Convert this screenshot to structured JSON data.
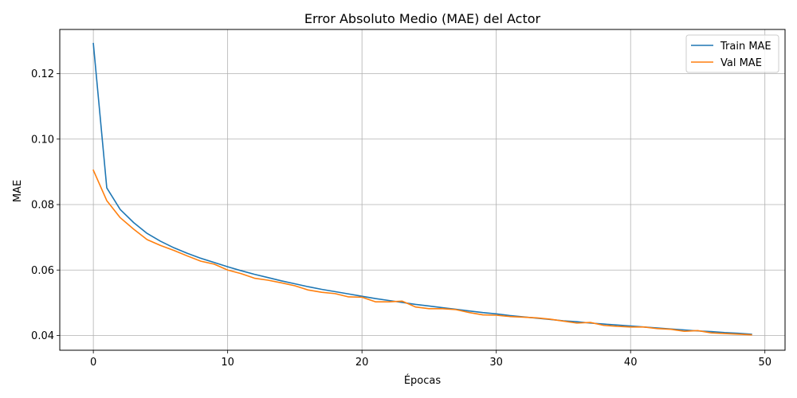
{
  "chart_data": {
    "type": "line",
    "title": "Error Absoluto Medio (MAE) del Actor",
    "xlabel": "Épocas",
    "ylabel": "MAE",
    "xlim": [
      -2.5,
      51.5
    ],
    "ylim": [
      0.0355,
      0.1335
    ],
    "xticks": [
      0,
      10,
      20,
      30,
      40,
      50
    ],
    "yticks": [
      0.04,
      0.06,
      0.08,
      0.1,
      0.12
    ],
    "ytick_labels": [
      "0.04",
      "0.06",
      "0.08",
      "0.10",
      "0.12"
    ],
    "grid": true,
    "legend_position": "top-right",
    "x": [
      0,
      1,
      2,
      3,
      4,
      5,
      6,
      7,
      8,
      9,
      10,
      11,
      12,
      13,
      14,
      15,
      16,
      17,
      18,
      19,
      20,
      21,
      22,
      23,
      24,
      25,
      26,
      27,
      28,
      29,
      30,
      31,
      32,
      33,
      34,
      35,
      36,
      37,
      38,
      39,
      40,
      41,
      42,
      43,
      44,
      45,
      46,
      47,
      48,
      49
    ],
    "series": [
      {
        "name": "Train MAE",
        "color": "#1f77b4",
        "values": [
          0.1292,
          0.0851,
          0.0785,
          0.0745,
          0.0712,
          0.0688,
          0.0668,
          0.0651,
          0.0636,
          0.0623,
          0.061,
          0.0598,
          0.0587,
          0.0577,
          0.0567,
          0.0558,
          0.0549,
          0.0541,
          0.0534,
          0.0527,
          0.052,
          0.0513,
          0.0507,
          0.0501,
          0.0495,
          0.049,
          0.0485,
          0.048,
          0.0475,
          0.047,
          0.0466,
          0.0461,
          0.0457,
          0.0453,
          0.0449,
          0.0445,
          0.0442,
          0.0438,
          0.0435,
          0.0432,
          0.0429,
          0.0426,
          0.0423,
          0.042,
          0.0417,
          0.0414,
          0.0412,
          0.0409,
          0.0407,
          0.0404
        ]
      },
      {
        "name": "Val MAE",
        "color": "#ff7f0e",
        "values": [
          0.0905,
          0.0812,
          0.076,
          0.0725,
          0.0693,
          0.0675,
          0.066,
          0.0643,
          0.0627,
          0.0618,
          0.06,
          0.0589,
          0.0575,
          0.0569,
          0.0561,
          0.0552,
          0.0539,
          0.0532,
          0.0528,
          0.0518,
          0.0517,
          0.0503,
          0.0503,
          0.0505,
          0.0487,
          0.0482,
          0.0482,
          0.0479,
          0.047,
          0.0463,
          0.0462,
          0.0458,
          0.0456,
          0.0454,
          0.045,
          0.0444,
          0.0438,
          0.044,
          0.0431,
          0.0428,
          0.0426,
          0.0426,
          0.0421,
          0.0419,
          0.0413,
          0.0415,
          0.0408,
          0.0406,
          0.0404,
          0.0402
        ]
      }
    ]
  }
}
